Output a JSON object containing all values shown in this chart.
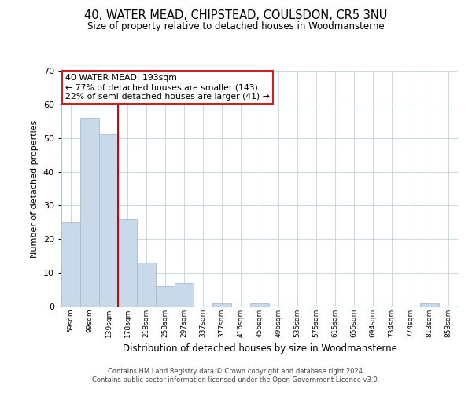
{
  "title": "40, WATER MEAD, CHIPSTEAD, COULSDON, CR5 3NU",
  "subtitle": "Size of property relative to detached houses in Woodmansterne",
  "xlabel": "Distribution of detached houses by size in Woodmansterne",
  "ylabel": "Number of detached properties",
  "bar_color": "#c9d9ea",
  "bar_edge_color": "#a8bdd0",
  "categories": [
    "59sqm",
    "99sqm",
    "139sqm",
    "178sqm",
    "218sqm",
    "258sqm",
    "297sqm",
    "337sqm",
    "377sqm",
    "416sqm",
    "456sqm",
    "496sqm",
    "535sqm",
    "575sqm",
    "615sqm",
    "655sqm",
    "694sqm",
    "734sqm",
    "774sqm",
    "813sqm",
    "853sqm"
  ],
  "values": [
    25,
    56,
    51,
    26,
    13,
    6,
    7,
    0,
    1,
    0,
    1,
    0,
    0,
    0,
    0,
    0,
    0,
    0,
    0,
    1,
    0
  ],
  "vline_index": 2.5,
  "vline_color": "#cc0000",
  "annotation_title": "40 WATER MEAD: 193sqm",
  "annotation_line1": "← 77% of detached houses are smaller (143)",
  "annotation_line2": "22% of semi-detached houses are larger (41) →",
  "ylim": [
    0,
    70
  ],
  "yticks": [
    0,
    10,
    20,
    30,
    40,
    50,
    60,
    70
  ],
  "footer1": "Contains HM Land Registry data © Crown copyright and database right 2024.",
  "footer2": "Contains public sector information licensed under the Open Government Licence v3.0.",
  "background_color": "#ffffff",
  "grid_color": "#ccd8e0"
}
